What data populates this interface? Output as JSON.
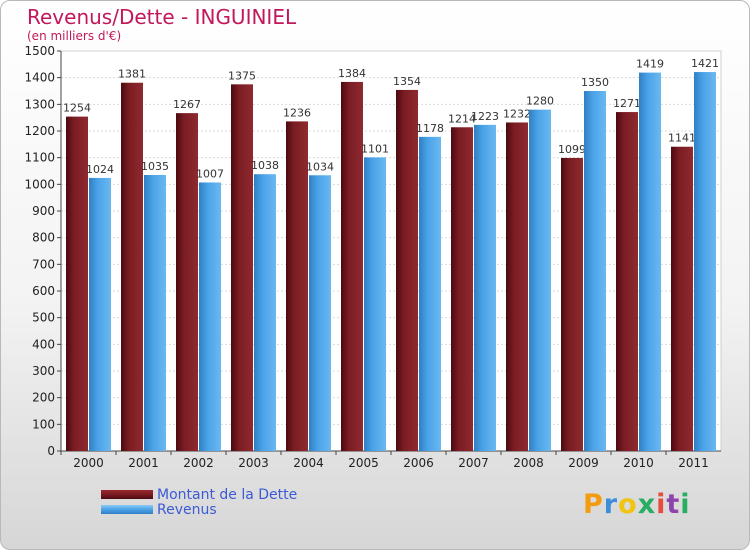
{
  "title": "Revenus/Dette - INGUINIEL",
  "subtitle": "(en milliers d'€)",
  "chart_data": {
    "type": "bar",
    "categories": [
      "2000",
      "2001",
      "2002",
      "2003",
      "2004",
      "2005",
      "2006",
      "2007",
      "2008",
      "2009",
      "2010",
      "2011"
    ],
    "series": [
      {
        "name": "Montant de la Dette",
        "values": [
          1254,
          1381,
          1267,
          1375,
          1236,
          1384,
          1354,
          1214,
          1232,
          1099,
          1271,
          1141
        ],
        "color": "#7a1c22"
      },
      {
        "name": "Revenus",
        "values": [
          1024,
          1035,
          1007,
          1038,
          1034,
          1101,
          1178,
          1223,
          1280,
          1350,
          1419,
          1421
        ],
        "color": "#4aa3e8"
      }
    ],
    "ylim": [
      0,
      1500
    ],
    "yticks": [
      0,
      100,
      200,
      300,
      400,
      500,
      600,
      700,
      800,
      900,
      1000,
      1100,
      1200,
      1300,
      1400,
      1500
    ],
    "grid": true,
    "legend": "bottom-left"
  },
  "logo": {
    "letters": [
      "P",
      "r",
      "o",
      "x",
      "i",
      "t",
      "i"
    ],
    "colors": [
      "#f39c12",
      "#3b8ed8",
      "#f1c40f",
      "#27ae60",
      "#e74c3c",
      "#8e44ad",
      "#27ae60"
    ]
  }
}
